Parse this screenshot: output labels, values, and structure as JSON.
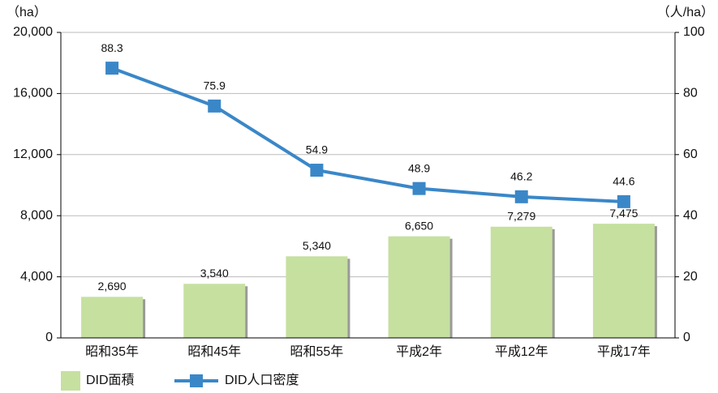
{
  "chart_data": {
    "type": "bar",
    "y_label": "（ha）",
    "y2_label": "（人/ha）",
    "categories": [
      "昭和35年",
      "昭和45年",
      "昭和55年",
      "平成2年",
      "平成12年",
      "平成17年"
    ],
    "series": [
      {
        "name": "DID面積",
        "type": "bar",
        "color": "#c6e0a0",
        "values": [
          2690,
          3540,
          5340,
          6650,
          7279,
          7475
        ],
        "value_labels": [
          "2,690",
          "3,540",
          "5,340",
          "6,650",
          "7,279",
          "7,475"
        ]
      },
      {
        "name": "DID人口密度",
        "type": "line",
        "axis": "y2",
        "color": "#3a87c8",
        "values": [
          88.3,
          75.9,
          54.9,
          48.9,
          46.2,
          44.6
        ]
      }
    ],
    "ylim": [
      0,
      20000
    ],
    "yticks": [
      0,
      {
        "value": 4000,
        "label": "4,000"
      },
      {
        "value": 8000,
        "label": "8,000"
      },
      {
        "value": 12000,
        "label": "12,000"
      },
      {
        "value": 16000,
        "label": "16,000"
      },
      {
        "value": 20000,
        "label": "20,000"
      }
    ],
    "y2lim": [
      0,
      100
    ],
    "y2ticks": [
      0,
      20,
      40,
      60,
      80,
      100
    ],
    "grid": true
  }
}
